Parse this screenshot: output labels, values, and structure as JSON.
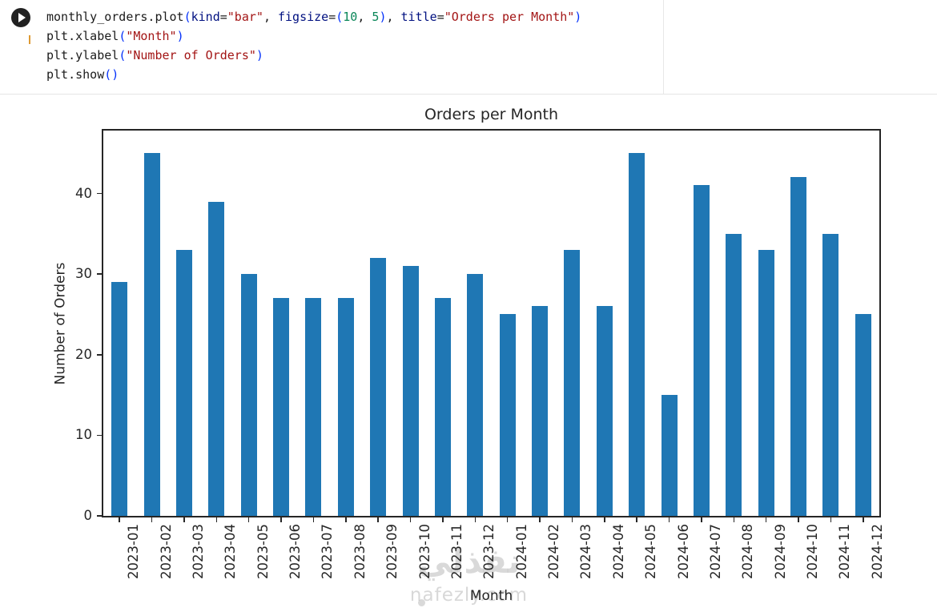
{
  "colors": {
    "plain": "#1b1b1b",
    "param": "#001080",
    "string": "#a31515",
    "number": "#098658",
    "bracket": "#0431fa",
    "bar": "#1f77b4",
    "axis": "#262626",
    "watermark": "#bebebe"
  },
  "icons": {
    "run_button": "play-circle-icon",
    "output_menu": "ellipsis-icon"
  },
  "code_cell": {
    "lines": [
      [
        {
          "t": "monthly_orders.plot",
          "c": "plain"
        },
        {
          "t": "(",
          "c": "bracket"
        },
        {
          "t": "kind",
          "c": "param"
        },
        {
          "t": "=",
          "c": "plain"
        },
        {
          "t": "\"bar\"",
          "c": "string"
        },
        {
          "t": ", ",
          "c": "plain"
        },
        {
          "t": "figsize",
          "c": "param"
        },
        {
          "t": "=",
          "c": "plain"
        },
        {
          "t": "(",
          "c": "bracket"
        },
        {
          "t": "10",
          "c": "number"
        },
        {
          "t": ", ",
          "c": "plain"
        },
        {
          "t": "5",
          "c": "number"
        },
        {
          "t": ")",
          "c": "bracket"
        },
        {
          "t": ", ",
          "c": "plain"
        },
        {
          "t": "title",
          "c": "param"
        },
        {
          "t": "=",
          "c": "plain"
        },
        {
          "t": "\"Orders per Month\"",
          "c": "string"
        },
        {
          "t": ")",
          "c": "bracket"
        }
      ],
      [
        {
          "t": "plt.xlabel",
          "c": "plain"
        },
        {
          "t": "(",
          "c": "bracket"
        },
        {
          "t": "\"Month\"",
          "c": "string"
        },
        {
          "t": ")",
          "c": "bracket"
        }
      ],
      [
        {
          "t": "plt.ylabel",
          "c": "plain"
        },
        {
          "t": "(",
          "c": "bracket"
        },
        {
          "t": "\"Number of Orders\"",
          "c": "string"
        },
        {
          "t": ")",
          "c": "bracket"
        }
      ],
      [
        {
          "t": "plt.show",
          "c": "plain"
        },
        {
          "t": "(",
          "c": "bracket"
        },
        {
          "t": ")",
          "c": "bracket"
        }
      ]
    ]
  },
  "chart_data": {
    "type": "bar",
    "title": "Orders per Month",
    "xlabel": "Month",
    "ylabel": "Number of Orders",
    "categories": [
      "2023-01",
      "2023-02",
      "2023-03",
      "2023-04",
      "2023-05",
      "2023-06",
      "2023-07",
      "2023-08",
      "2023-09",
      "2023-10",
      "2023-11",
      "2023-12",
      "2024-01",
      "2024-02",
      "2024-03",
      "2024-04",
      "2024-05",
      "2024-06",
      "2024-07",
      "2024-08",
      "2024-09",
      "2024-10",
      "2024-11",
      "2024-12"
    ],
    "values": [
      29,
      45,
      33,
      39,
      30,
      27,
      27,
      27,
      32,
      31,
      27,
      30,
      25,
      26,
      33,
      26,
      45,
      15,
      41,
      35,
      33,
      42,
      35,
      25
    ],
    "yticks": [
      0,
      10,
      20,
      30,
      40
    ],
    "ylim": [
      0,
      47.8
    ],
    "grid": false,
    "legend": "none",
    "bar_color": "#1f77b4",
    "tick_rotation": 90
  },
  "watermark": {
    "arabic": "نفذلي",
    "domain": "nafezly.com"
  }
}
